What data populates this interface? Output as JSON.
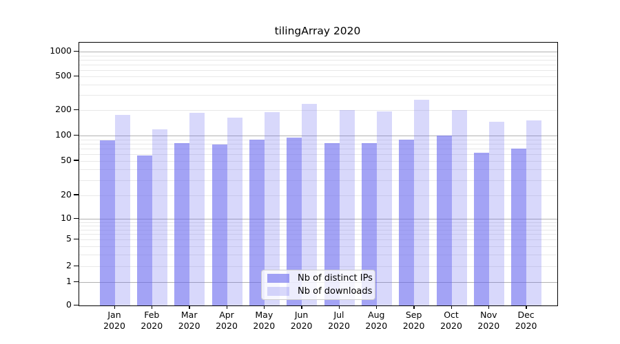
{
  "chart_data": {
    "type": "bar",
    "title": "tilingArray 2020",
    "categories": [
      "Jan",
      "Feb",
      "Mar",
      "Apr",
      "May",
      "Jun",
      "Jul",
      "Aug",
      "Sep",
      "Oct",
      "Nov",
      "Dec"
    ],
    "x_year": "2020",
    "series": [
      {
        "name": "Nb of distinct IPs",
        "color_key": "bar_dark",
        "values": [
          88,
          58,
          82,
          79,
          90,
          95,
          82,
          82,
          90,
          101,
          63,
          70
        ]
      },
      {
        "name": "Nb of downloads",
        "color_key": "bar_light",
        "values": [
          176,
          119,
          187,
          163,
          189,
          237,
          200,
          193,
          264,
          199,
          146,
          151
        ]
      }
    ],
    "y_ticks": [
      0,
      1,
      2,
      5,
      10,
      20,
      50,
      100,
      200,
      500,
      1000
    ],
    "y_minor_gridlines": [
      2,
      3,
      4,
      5,
      6,
      7,
      8,
      9,
      20,
      30,
      40,
      50,
      60,
      70,
      80,
      90,
      200,
      300,
      400,
      500,
      600,
      700,
      800,
      900
    ],
    "y_major_gridlines": [
      1,
      10,
      100,
      1000
    ],
    "y_scale": "log (linear below 1, includes 0 baseline)",
    "ylim": [
      0,
      1100
    ],
    "xlabel": "",
    "ylabel": "",
    "grid": "horizontal major and minor gridlines",
    "legend_position": "inside bottom-center"
  },
  "colors": {
    "bar_dark": "rgba(101,101,238,0.6)",
    "bar_light": "rgba(101,101,238,0.25)",
    "grid_major": "#b0b0b0",
    "grid_minor": "#e8e8e8",
    "axis": "#000000",
    "legend_border": "#cccccc"
  }
}
